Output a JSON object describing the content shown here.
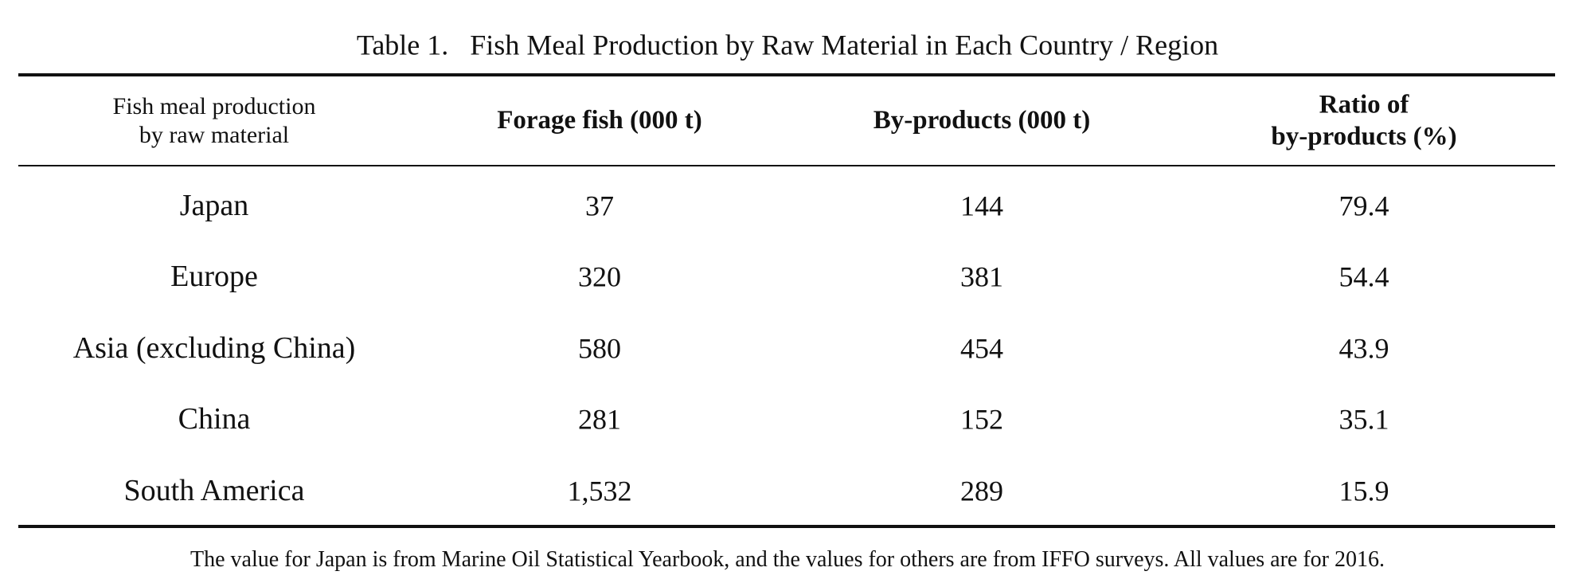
{
  "title": "Table 1.   Fish Meal Production by Raw Material in Each Country / Region",
  "table": {
    "header": [
      [
        "Fish meal production",
        "by raw material"
      ],
      [
        "Forage fish (000 t)"
      ],
      [
        "By-products (000 t)"
      ],
      [
        "Ratio of",
        "by-products (%)"
      ]
    ],
    "rows": [
      [
        "Japan",
        "37",
        "144",
        "79.4"
      ],
      [
        "Europe",
        "320",
        "381",
        "54.4"
      ],
      [
        "Asia (excluding China)",
        "580",
        "454",
        "43.9"
      ],
      [
        "China",
        "281",
        "152",
        "35.1"
      ],
      [
        "South America",
        "1,532",
        "289",
        "15.9"
      ]
    ]
  },
  "footnote": "The value for Japan is from Marine Oil Statistical Yearbook, and the values for others are from IFFO surveys. All values are for 2016."
}
